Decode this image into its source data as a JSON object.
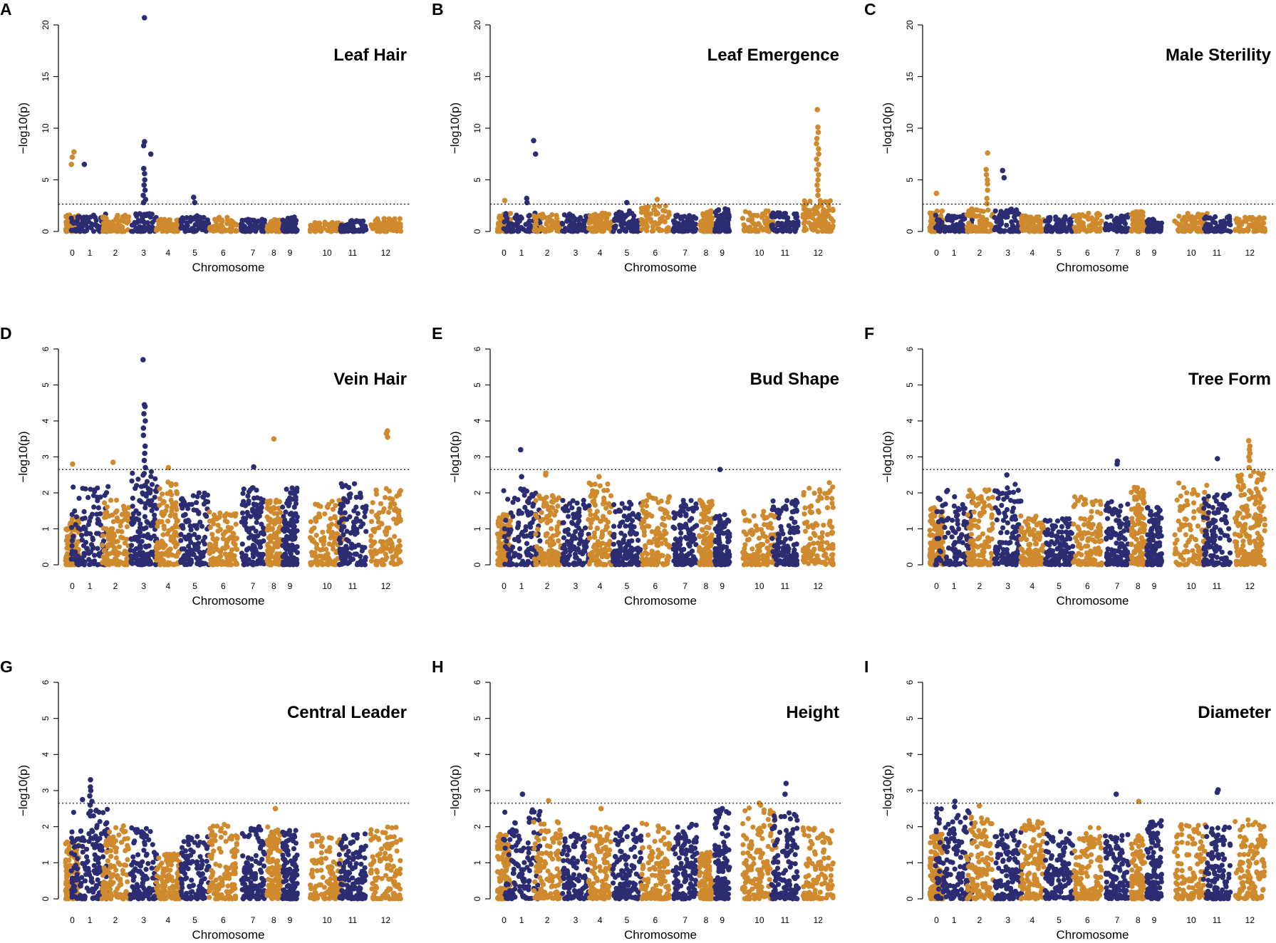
{
  "chart_data": [
    {
      "type": "scatter",
      "letter": "A",
      "title": "Leaf Hair",
      "xlabel": "Chromosome",
      "ylabel": "−log10(p)",
      "ylim": [
        0,
        20
      ],
      "yticks": [
        "0",
        "5",
        "10",
        "15",
        "20"
      ],
      "threshold": 2.65,
      "chromosomes": [
        "0",
        "1",
        "2",
        "3",
        "4",
        "5",
        "6",
        "7",
        "8",
        "9",
        "10",
        "11",
        "12"
      ],
      "colors": {
        "odd": "#2c2c73",
        "even": "#d08a2e"
      },
      "profile": [
        {
          "ymax": 1.6,
          "density": 1
        },
        {
          "ymax": 1.7,
          "density": 1
        },
        {
          "ymax": 1.6,
          "density": 1
        },
        {
          "ymax": 1.8,
          "density": 1
        },
        {
          "ymax": 1.2,
          "density": 1
        },
        {
          "ymax": 1.6,
          "density": 1
        },
        {
          "ymax": 1.4,
          "density": 1
        },
        {
          "ymax": 1.2,
          "density": 1
        },
        {
          "ymax": 1.2,
          "density": 1
        },
        {
          "ymax": 1.4,
          "density": 1
        },
        {
          "ymax": 0.9,
          "density": 1
        },
        {
          "ymax": 1.1,
          "density": 1
        },
        {
          "ymax": 1.3,
          "density": 1
        }
      ],
      "peaks": [
        {
          "chr": 0,
          "pos": 0.05,
          "values": [
            6.5,
            7.2,
            7.7
          ]
        },
        {
          "chr": 1,
          "pos": -0.35,
          "values": [
            6.5
          ]
        },
        {
          "chr": 3,
          "pos": 0.05,
          "values": [
            2.8,
            3.1,
            3.5,
            4.0,
            4.5,
            5.0,
            5.6,
            6.1,
            8.3,
            8.7,
            20.7
          ]
        },
        {
          "chr": 3,
          "pos": 0.55,
          "values": [
            7.5
          ]
        },
        {
          "chr": 5,
          "pos": 0,
          "values": [
            2.8,
            3.3
          ]
        }
      ]
    },
    {
      "type": "scatter",
      "letter": "B",
      "title": "Leaf Emergence",
      "xlabel": "Chromosome",
      "ylabel": "−log10(p)",
      "ylim": [
        0,
        20
      ],
      "yticks": [
        "0",
        "5",
        "10",
        "15",
        "20"
      ],
      "threshold": 2.65,
      "chromosomes": [
        "0",
        "1",
        "2",
        "3",
        "4",
        "5",
        "6",
        "7",
        "8",
        "9",
        "10",
        "11",
        "12"
      ],
      "colors": {
        "odd": "#2c2c73",
        "even": "#d08a2e"
      },
      "profile": [
        {
          "ymax": 1.8,
          "density": 1
        },
        {
          "ymax": 2.0,
          "density": 1
        },
        {
          "ymax": 1.7,
          "density": 1
        },
        {
          "ymax": 1.7,
          "density": 1
        },
        {
          "ymax": 1.8,
          "density": 1
        },
        {
          "ymax": 2.0,
          "density": 1
        },
        {
          "ymax": 2.5,
          "density": 1
        },
        {
          "ymax": 1.6,
          "density": 1
        },
        {
          "ymax": 2.0,
          "density": 1
        },
        {
          "ymax": 2.2,
          "density": 1
        },
        {
          "ymax": 2.0,
          "density": 1
        },
        {
          "ymax": 2.0,
          "density": 1
        },
        {
          "ymax": 3.0,
          "density": 1.6
        }
      ],
      "peaks": [
        {
          "chr": 0,
          "pos": 0,
          "values": [
            3.0
          ]
        },
        {
          "chr": 1,
          "pos": 0.25,
          "values": [
            2.8,
            3.2
          ]
        },
        {
          "chr": 1,
          "pos": 0.7,
          "values": [
            7.5,
            8.8
          ]
        },
        {
          "chr": 5,
          "pos": 0,
          "values": [
            2.8
          ]
        },
        {
          "chr": 6,
          "pos": 0.1,
          "values": [
            3.1
          ]
        },
        {
          "chr": 12,
          "pos": -0.05,
          "values": [
            3.5,
            4.0,
            4.5,
            5.0,
            5.5,
            6.0,
            6.5,
            7.0,
            7.5,
            8.0,
            8.5,
            9.0,
            9.6,
            10.1,
            11.8
          ]
        }
      ]
    },
    {
      "type": "scatter",
      "letter": "C",
      "title": "Male Sterility",
      "xlabel": "Chromosome",
      "ylabel": "−log10(p)",
      "ylim": [
        0,
        20
      ],
      "yticks": [
        "0",
        "5",
        "10",
        "15",
        "20"
      ],
      "threshold": 2.65,
      "chromosomes": [
        "0",
        "1",
        "2",
        "3",
        "4",
        "5",
        "6",
        "7",
        "8",
        "9",
        "10",
        "11",
        "12"
      ],
      "colors": {
        "odd": "#2c2c73",
        "even": "#d08a2e"
      },
      "profile": [
        {
          "ymax": 2.0,
          "density": 1
        },
        {
          "ymax": 1.8,
          "density": 1
        },
        {
          "ymax": 2.2,
          "density": 1
        },
        {
          "ymax": 2.2,
          "density": 1
        },
        {
          "ymax": 1.6,
          "density": 1
        },
        {
          "ymax": 1.5,
          "density": 1
        },
        {
          "ymax": 1.8,
          "density": 1
        },
        {
          "ymax": 1.6,
          "density": 1
        },
        {
          "ymax": 2.0,
          "density": 1
        },
        {
          "ymax": 1.2,
          "density": 1
        },
        {
          "ymax": 1.8,
          "density": 1
        },
        {
          "ymax": 1.5,
          "density": 1
        },
        {
          "ymax": 1.4,
          "density": 1
        }
      ],
      "peaks": [
        {
          "chr": 0,
          "pos": 0,
          "values": [
            3.7
          ]
        },
        {
          "chr": 2,
          "pos": 0.5,
          "values": [
            2.7,
            3.2,
            4.0,
            4.6,
            5.0,
            5.5,
            6.0,
            7.6
          ]
        },
        {
          "chr": 3,
          "pos": -0.3,
          "values": [
            5.2,
            5.9
          ]
        }
      ]
    },
    {
      "type": "scatter",
      "letter": "D",
      "title": "Vein Hair",
      "xlabel": "Chromosome",
      "ylabel": "−log10(p)",
      "ylim": [
        0,
        6
      ],
      "yticks": [
        "0",
        "1",
        "2",
        "3",
        "4",
        "5",
        "6"
      ],
      "threshold": 2.65,
      "chromosomes": [
        "0",
        "1",
        "2",
        "3",
        "4",
        "5",
        "6",
        "7",
        "8",
        "9",
        "10",
        "11",
        "12"
      ],
      "colors": {
        "odd": "#2c2c73",
        "even": "#d08a2e"
      },
      "profile": [
        {
          "ymax": 1.3,
          "density": 1
        },
        {
          "ymax": 2.2,
          "density": 1
        },
        {
          "ymax": 1.8,
          "density": 1
        },
        {
          "ymax": 2.6,
          "density": 1.3
        },
        {
          "ymax": 2.3,
          "density": 1
        },
        {
          "ymax": 2.0,
          "density": 1
        },
        {
          "ymax": 1.5,
          "density": 1
        },
        {
          "ymax": 2.2,
          "density": 1
        },
        {
          "ymax": 1.8,
          "density": 1
        },
        {
          "ymax": 2.2,
          "density": 1
        },
        {
          "ymax": 1.8,
          "density": 1
        },
        {
          "ymax": 2.3,
          "density": 1
        },
        {
          "ymax": 2.2,
          "density": 1
        }
      ],
      "peaks": [
        {
          "chr": 0,
          "pos": 0,
          "values": [
            2.8
          ]
        },
        {
          "chr": 2,
          "pos": -0.25,
          "values": [
            2.85
          ]
        },
        {
          "chr": 3,
          "pos": 0.05,
          "values": [
            2.7,
            2.9,
            3.1,
            3.3,
            3.6,
            3.8,
            4.0,
            4.2,
            4.4,
            4.45,
            5.7
          ]
        },
        {
          "chr": 4,
          "pos": 0,
          "values": [
            2.7
          ]
        },
        {
          "chr": 7,
          "pos": 0.1,
          "values": [
            2.72
          ]
        },
        {
          "chr": 8,
          "pos": 0,
          "values": [
            3.5
          ]
        },
        {
          "chr": 12,
          "pos": 0.1,
          "values": [
            3.55,
            3.65,
            3.72
          ]
        }
      ]
    },
    {
      "type": "scatter",
      "letter": "E",
      "title": "Bud Shape",
      "xlabel": "Chromosome",
      "ylabel": "−log10(p)",
      "ylim": [
        0,
        6
      ],
      "yticks": [
        "0",
        "1",
        "2",
        "3",
        "4",
        "5",
        "6"
      ],
      "threshold": 2.65,
      "chromosomes": [
        "0",
        "1",
        "2",
        "3",
        "4",
        "5",
        "6",
        "7",
        "8",
        "9",
        "10",
        "11",
        "12"
      ],
      "colors": {
        "odd": "#2c2c73",
        "even": "#d08a2e"
      },
      "profile": [
        {
          "ymax": 1.4,
          "density": 1
        },
        {
          "ymax": 2.2,
          "density": 1
        },
        {
          "ymax": 2.0,
          "density": 1
        },
        {
          "ymax": 1.8,
          "density": 1
        },
        {
          "ymax": 2.3,
          "density": 1
        },
        {
          "ymax": 1.8,
          "density": 1
        },
        {
          "ymax": 2.0,
          "density": 1
        },
        {
          "ymax": 1.8,
          "density": 1
        },
        {
          "ymax": 1.8,
          "density": 1
        },
        {
          "ymax": 1.4,
          "density": 1
        },
        {
          "ymax": 1.5,
          "density": 1
        },
        {
          "ymax": 1.8,
          "density": 1
        },
        {
          "ymax": 2.3,
          "density": 1
        }
      ],
      "peaks": [
        {
          "chr": 1,
          "pos": 0,
          "values": [
            2.45,
            3.2
          ]
        },
        {
          "chr": 2,
          "pos": -0.2,
          "values": [
            2.5,
            2.55
          ]
        },
        {
          "chr": 4,
          "pos": 0,
          "values": [
            2.45
          ]
        },
        {
          "chr": 9,
          "pos": -0.2,
          "values": [
            2.65
          ]
        }
      ]
    },
    {
      "type": "scatter",
      "letter": "F",
      "title": "Tree Form",
      "xlabel": "Chromosome",
      "ylabel": "−log10(p)",
      "ylim": [
        0,
        6
      ],
      "yticks": [
        "0",
        "1",
        "2",
        "3",
        "4",
        "5",
        "6"
      ],
      "threshold": 2.65,
      "chromosomes": [
        "0",
        "1",
        "2",
        "3",
        "4",
        "5",
        "6",
        "7",
        "8",
        "9",
        "10",
        "11",
        "12"
      ],
      "colors": {
        "odd": "#2c2c73",
        "even": "#d08a2e"
      },
      "profile": [
        {
          "ymax": 1.6,
          "density": 1
        },
        {
          "ymax": 2.1,
          "density": 1
        },
        {
          "ymax": 2.1,
          "density": 1
        },
        {
          "ymax": 2.3,
          "density": 1
        },
        {
          "ymax": 1.4,
          "density": 1
        },
        {
          "ymax": 1.3,
          "density": 1
        },
        {
          "ymax": 1.9,
          "density": 1
        },
        {
          "ymax": 1.8,
          "density": 1
        },
        {
          "ymax": 2.2,
          "density": 1
        },
        {
          "ymax": 1.6,
          "density": 1
        },
        {
          "ymax": 2.3,
          "density": 1
        },
        {
          "ymax": 2.0,
          "density": 1
        },
        {
          "ymax": 2.6,
          "density": 1.5
        }
      ],
      "peaks": [
        {
          "chr": 3,
          "pos": 0,
          "values": [
            2.5
          ]
        },
        {
          "chr": 7,
          "pos": 0,
          "values": [
            2.8,
            2.88
          ]
        },
        {
          "chr": 11,
          "pos": 0,
          "values": [
            2.95
          ]
        },
        {
          "chr": 12,
          "pos": 0,
          "values": [
            2.7,
            2.9,
            3.0,
            3.1,
            3.2,
            3.3,
            3.45
          ]
        },
        {
          "chr": 12,
          "pos": 0.55,
          "values": [
            2.55
          ]
        }
      ]
    },
    {
      "type": "scatter",
      "letter": "G",
      "title": "Central Leader",
      "xlabel": "Chromosome",
      "ylabel": "−log10(p)",
      "ylim": [
        0,
        6
      ],
      "yticks": [
        "0",
        "1",
        "2",
        "3",
        "4",
        "5",
        "6"
      ],
      "threshold": 2.65,
      "chromosomes": [
        "0",
        "1",
        "2",
        "3",
        "4",
        "5",
        "6",
        "7",
        "8",
        "9",
        "10",
        "11",
        "12"
      ],
      "colors": {
        "odd": "#2c2c73",
        "even": "#d08a2e"
      },
      "profile": [
        {
          "ymax": 1.6,
          "density": 1
        },
        {
          "ymax": 2.5,
          "density": 1.4
        },
        {
          "ymax": 2.1,
          "density": 1
        },
        {
          "ymax": 2.0,
          "density": 1
        },
        {
          "ymax": 1.3,
          "density": 1
        },
        {
          "ymax": 1.8,
          "density": 1
        },
        {
          "ymax": 2.1,
          "density": 1
        },
        {
          "ymax": 2.0,
          "density": 1
        },
        {
          "ymax": 2.0,
          "density": 1
        },
        {
          "ymax": 1.9,
          "density": 1
        },
        {
          "ymax": 1.8,
          "density": 1
        },
        {
          "ymax": 1.8,
          "density": 1
        },
        {
          "ymax": 2.0,
          "density": 1
        }
      ],
      "peaks": [
        {
          "chr": 1,
          "pos": -0.4,
          "values": [
            2.75
          ]
        },
        {
          "chr": 1,
          "pos": 0.05,
          "values": [
            2.6,
            2.7,
            2.85,
            3.0,
            3.1,
            3.3
          ]
        },
        {
          "chr": 8,
          "pos": 0.2,
          "values": [
            2.5
          ]
        }
      ]
    },
    {
      "type": "scatter",
      "letter": "H",
      "title": "Height",
      "xlabel": "Chromosome",
      "ylabel": "−log10(p)",
      "ylim": [
        0,
        6
      ],
      "yticks": [
        "0",
        "1",
        "2",
        "3",
        "4",
        "5",
        "6"
      ],
      "threshold": 2.65,
      "chromosomes": [
        "0",
        "1",
        "2",
        "3",
        "4",
        "5",
        "6",
        "7",
        "8",
        "9",
        "10",
        "11",
        "12"
      ],
      "colors": {
        "odd": "#2c2c73",
        "even": "#d08a2e"
      },
      "profile": [
        {
          "ymax": 1.8,
          "density": 1
        },
        {
          "ymax": 2.5,
          "density": 1
        },
        {
          "ymax": 2.2,
          "density": 1
        },
        {
          "ymax": 1.8,
          "density": 1
        },
        {
          "ymax": 2.0,
          "density": 1
        },
        {
          "ymax": 2.0,
          "density": 1
        },
        {
          "ymax": 2.1,
          "density": 1
        },
        {
          "ymax": 2.1,
          "density": 1
        },
        {
          "ymax": 1.3,
          "density": 1
        },
        {
          "ymax": 2.5,
          "density": 1
        },
        {
          "ymax": 2.6,
          "density": 1.2
        },
        {
          "ymax": 2.4,
          "density": 1
        },
        {
          "ymax": 2.0,
          "density": 1
        }
      ],
      "peaks": [
        {
          "chr": 1,
          "pos": 0,
          "values": [
            2.9
          ]
        },
        {
          "chr": 2,
          "pos": 0.15,
          "values": [
            2.72
          ]
        },
        {
          "chr": 4,
          "pos": 0,
          "values": [
            2.5
          ]
        },
        {
          "chr": 9,
          "pos": 0.1,
          "values": [
            2.5
          ]
        },
        {
          "chr": 10,
          "pos": 0,
          "values": [
            2.6,
            2.65
          ]
        },
        {
          "chr": 11,
          "pos": 0.1,
          "values": [
            2.9,
            3.2
          ]
        }
      ]
    },
    {
      "type": "scatter",
      "letter": "I",
      "title": "Diameter",
      "xlabel": "Chromosome",
      "ylabel": "−log10(p)",
      "ylim": [
        0,
        6
      ],
      "yticks": [
        "0",
        "1",
        "2",
        "3",
        "4",
        "5",
        "6"
      ],
      "threshold": 2.65,
      "chromosomes": [
        "0",
        "1",
        "2",
        "3",
        "4",
        "5",
        "6",
        "7",
        "8",
        "9",
        "10",
        "11",
        "12"
      ],
      "colors": {
        "odd": "#2c2c73",
        "even": "#d08a2e"
      },
      "profile": [
        {
          "ymax": 1.8,
          "density": 1
        },
        {
          "ymax": 2.5,
          "density": 1.2
        },
        {
          "ymax": 2.3,
          "density": 1
        },
        {
          "ymax": 1.9,
          "density": 1
        },
        {
          "ymax": 2.2,
          "density": 1
        },
        {
          "ymax": 1.9,
          "density": 1
        },
        {
          "ymax": 2.0,
          "density": 1
        },
        {
          "ymax": 1.8,
          "density": 1
        },
        {
          "ymax": 1.8,
          "density": 1
        },
        {
          "ymax": 2.2,
          "density": 1
        },
        {
          "ymax": 2.1,
          "density": 1
        },
        {
          "ymax": 2.0,
          "density": 1
        },
        {
          "ymax": 2.2,
          "density": 1
        }
      ],
      "peaks": [
        {
          "chr": 1,
          "pos": 0,
          "values": [
            2.55,
            2.7
          ]
        },
        {
          "chr": 2,
          "pos": 0,
          "values": [
            2.58
          ]
        },
        {
          "chr": 7,
          "pos": 0,
          "values": [
            2.9
          ]
        },
        {
          "chr": 8,
          "pos": 0,
          "values": [
            2.7
          ]
        },
        {
          "chr": 11,
          "pos": 0,
          "values": [
            2.95,
            3.02
          ]
        }
      ]
    }
  ]
}
